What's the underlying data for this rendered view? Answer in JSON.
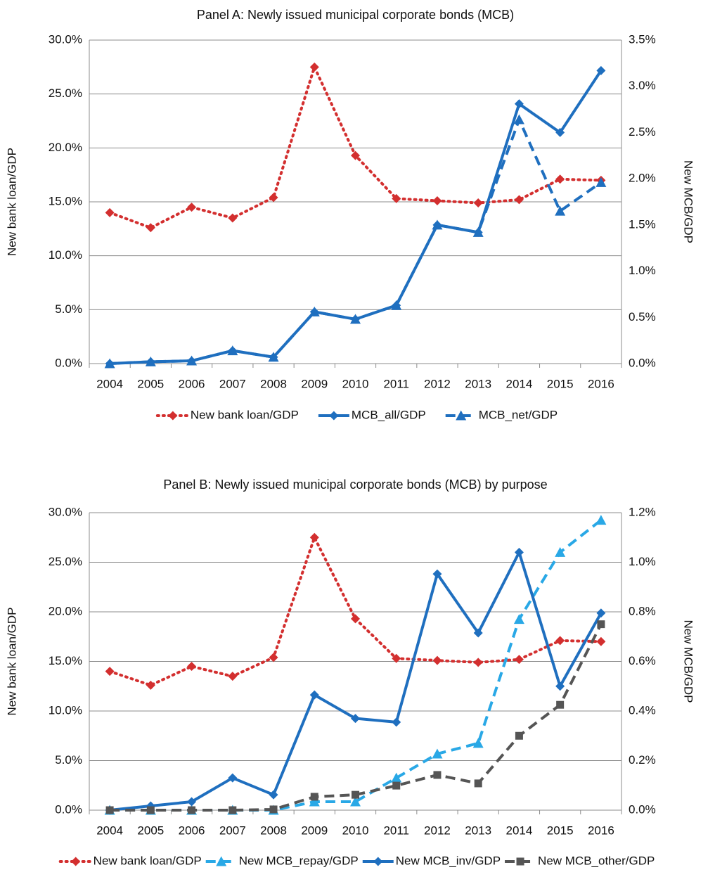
{
  "chart_data": [
    {
      "type": "line",
      "title": "Panel A: Newly issued municipal corporate bonds (MCB)",
      "y_label": "New bank loan/GDP",
      "y2_label": "New MCB/GDP",
      "categories": [
        "2004",
        "2005",
        "2006",
        "2007",
        "2008",
        "2009",
        "2010",
        "2011",
        "2012",
        "2013",
        "2014",
        "2015",
        "2016"
      ],
      "ylim": [
        0,
        30
      ],
      "yticks": [
        {
          "value": 0,
          "label": "0.0%"
        },
        {
          "value": 5,
          "label": "5.0%"
        },
        {
          "value": 10,
          "label": "10.0%"
        },
        {
          "value": 15,
          "label": "15.0%"
        },
        {
          "value": 20,
          "label": "20.0%"
        },
        {
          "value": 25,
          "label": "25.0%"
        },
        {
          "value": 30,
          "label": "30.0%"
        }
      ],
      "y2lim": [
        0,
        3.5
      ],
      "y2ticks": [
        {
          "value": 0,
          "label": "0.0%"
        },
        {
          "value": 0.5,
          "label": "0.5%"
        },
        {
          "value": 1,
          "label": "1.0%"
        },
        {
          "value": 1.5,
          "label": "1.5%"
        },
        {
          "value": 2,
          "label": "2.0%"
        },
        {
          "value": 2.5,
          "label": "2.5%"
        },
        {
          "value": 3,
          "label": "3.0%"
        },
        {
          "value": 3.5,
          "label": "3.5%"
        }
      ],
      "grid": true,
      "legend": "bottom",
      "series": [
        {
          "name": "New bank loan/GDP",
          "color": "#d32f2f",
          "dash": "dotted",
          "marker": "diamond",
          "values": [
            14.0,
            12.6,
            14.5,
            13.5,
            15.4,
            27.5,
            19.3,
            15.3,
            15.1,
            14.9,
            15.2,
            17.1,
            17.0
          ]
        },
        {
          "name": "MCB_all/GDP",
          "color": "#1f6fbf",
          "dash": "solid",
          "marker": "diamond",
          "axis": "y2",
          "values": [
            0.0,
            0.02,
            0.03,
            0.14,
            0.07,
            0.56,
            0.48,
            0.63,
            1.5,
            1.42,
            2.81,
            2.5,
            3.17
          ]
        },
        {
          "name": "MCB_net/GDP",
          "color": "#1f6fbf",
          "dash": "dashed",
          "marker": "triangle",
          "axis": "y2",
          "values": [
            0.0,
            0.02,
            0.03,
            0.14,
            0.07,
            0.56,
            0.48,
            0.63,
            1.5,
            1.42,
            2.64,
            1.65,
            1.96
          ]
        }
      ]
    },
    {
      "type": "line",
      "title": "Panel B: Newly issued municipal corporate bonds (MCB)  by purpose",
      "y_label": "New bank loan/GDP",
      "y2_label": "New MCB/GDP",
      "categories": [
        "2004",
        "2005",
        "2006",
        "2007",
        "2008",
        "2009",
        "2010",
        "2011",
        "2012",
        "2013",
        "2014",
        "2015",
        "2016"
      ],
      "ylim": [
        0,
        30
      ],
      "yticks": [
        {
          "value": 0,
          "label": "0.0%"
        },
        {
          "value": 5,
          "label": "5.0%"
        },
        {
          "value": 10,
          "label": "10.0%"
        },
        {
          "value": 15,
          "label": "15.0%"
        },
        {
          "value": 20,
          "label": "20.0%"
        },
        {
          "value": 25,
          "label": "25.0%"
        },
        {
          "value": 30,
          "label": "30.0%"
        }
      ],
      "y2lim": [
        0,
        1.2
      ],
      "y2ticks": [
        {
          "value": 0,
          "label": "0.0%"
        },
        {
          "value": 0.2,
          "label": "0.2%"
        },
        {
          "value": 0.4,
          "label": "0.4%"
        },
        {
          "value": 0.6,
          "label": "0.6%"
        },
        {
          "value": 0.8,
          "label": "0.8%"
        },
        {
          "value": 1,
          "label": "1.0%"
        },
        {
          "value": 1.2,
          "label": "1.2%"
        }
      ],
      "grid": true,
      "legend": "bottom",
      "series": [
        {
          "name": "New bank loan/GDP",
          "color": "#d32f2f",
          "dash": "dotted",
          "marker": "diamond",
          "values": [
            14.0,
            12.6,
            14.5,
            13.5,
            15.4,
            27.5,
            19.3,
            15.3,
            15.1,
            14.9,
            15.2,
            17.1,
            17.0
          ]
        },
        {
          "name": "New MCB_repay/GDP",
          "color": "#29a8e6",
          "dash": "dashed",
          "marker": "triangle",
          "axis": "y2",
          "values": [
            0.0,
            0.0,
            0.0,
            0.0,
            0.0,
            0.034,
            0.034,
            0.13,
            0.227,
            0.27,
            0.77,
            1.04,
            1.17
          ]
        },
        {
          "name": "New MCB_inv/GDP",
          "color": "#1f6fbf",
          "dash": "solid",
          "marker": "diamond",
          "axis": "y2",
          "values": [
            0.0,
            0.017,
            0.034,
            0.13,
            0.062,
            0.465,
            0.37,
            0.355,
            0.953,
            0.715,
            1.04,
            0.5,
            0.795
          ]
        },
        {
          "name": "New MCB_other/GDP",
          "color": "#555555",
          "dash": "dashed",
          "marker": "square",
          "axis": "y2",
          "values": [
            0.0,
            0.0,
            0.0,
            0.0,
            0.003,
            0.054,
            0.062,
            0.099,
            0.142,
            0.108,
            0.3,
            0.425,
            0.75
          ]
        }
      ]
    }
  ]
}
